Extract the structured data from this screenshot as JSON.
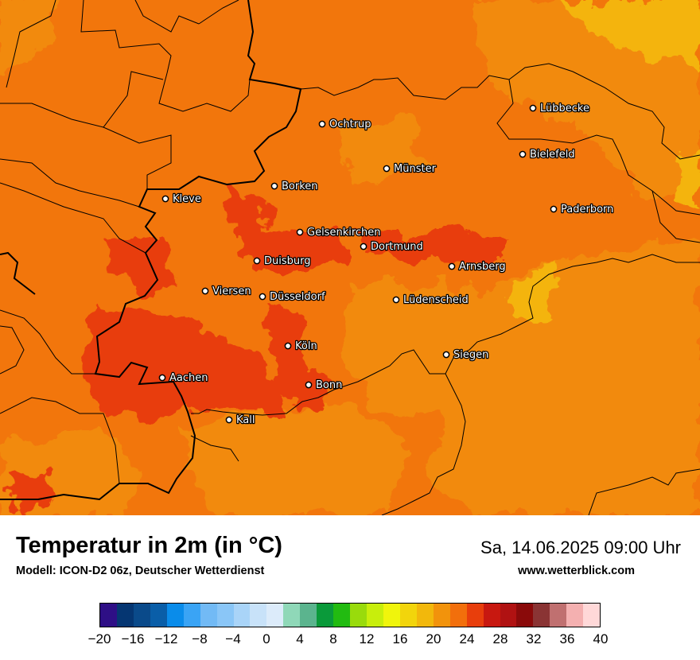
{
  "title": "Temperatur in 2m (in °C)",
  "subtitle": "Modell: ICON-D2 06z, Deutscher Wetterdienst",
  "datetime": "Sa, 14.06.2025 09:00 Uhr",
  "website": "www.wetterblick.com",
  "map": {
    "cities": [
      {
        "name": "Lübbecke"
      },
      {
        "name": "Ochtrup"
      },
      {
        "name": "Bielefeld"
      },
      {
        "name": "Münster"
      },
      {
        "name": "Borken"
      },
      {
        "name": "Kleve"
      },
      {
        "name": "Paderborn"
      },
      {
        "name": "Gelsenkirchen"
      },
      {
        "name": "Dortmund"
      },
      {
        "name": "Duisburg"
      },
      {
        "name": "Arnsberg"
      },
      {
        "name": "Viersen"
      },
      {
        "name": "Düsseldorf"
      },
      {
        "name": "Lüdenscheid"
      },
      {
        "name": "Köln"
      },
      {
        "name": "Siegen"
      },
      {
        "name": "Aachen"
      },
      {
        "name": "Bonn"
      },
      {
        "name": "Kall"
      }
    ]
  },
  "colorbar": {
    "colors": [
      "#2e0f86",
      "#053672",
      "#0a4a8a",
      "#0a5ea8",
      "#0a8cea",
      "#3aa4f5",
      "#72baf5",
      "#8ac6f7",
      "#a9d4f8",
      "#c8e2f9",
      "#dcebfa",
      "#8fd8b8",
      "#5bb48e",
      "#0a9a3a",
      "#22bb11",
      "#99db0c",
      "#c8ee0c",
      "#f0f50c",
      "#f2d50c",
      "#f2b80c",
      "#f2930c",
      "#f26f0c",
      "#e83e0c",
      "#c81810",
      "#b01212",
      "#8a0a0a",
      "#8a3434",
      "#c07070",
      "#f4b0b0",
      "#ffd8d8"
    ],
    "tick_labels": [
      "−20",
      "−16",
      "−12",
      "−8",
      "−4",
      "0",
      "4",
      "8",
      "12",
      "16",
      "20",
      "24",
      "28",
      "32",
      "36",
      "40"
    ]
  }
}
